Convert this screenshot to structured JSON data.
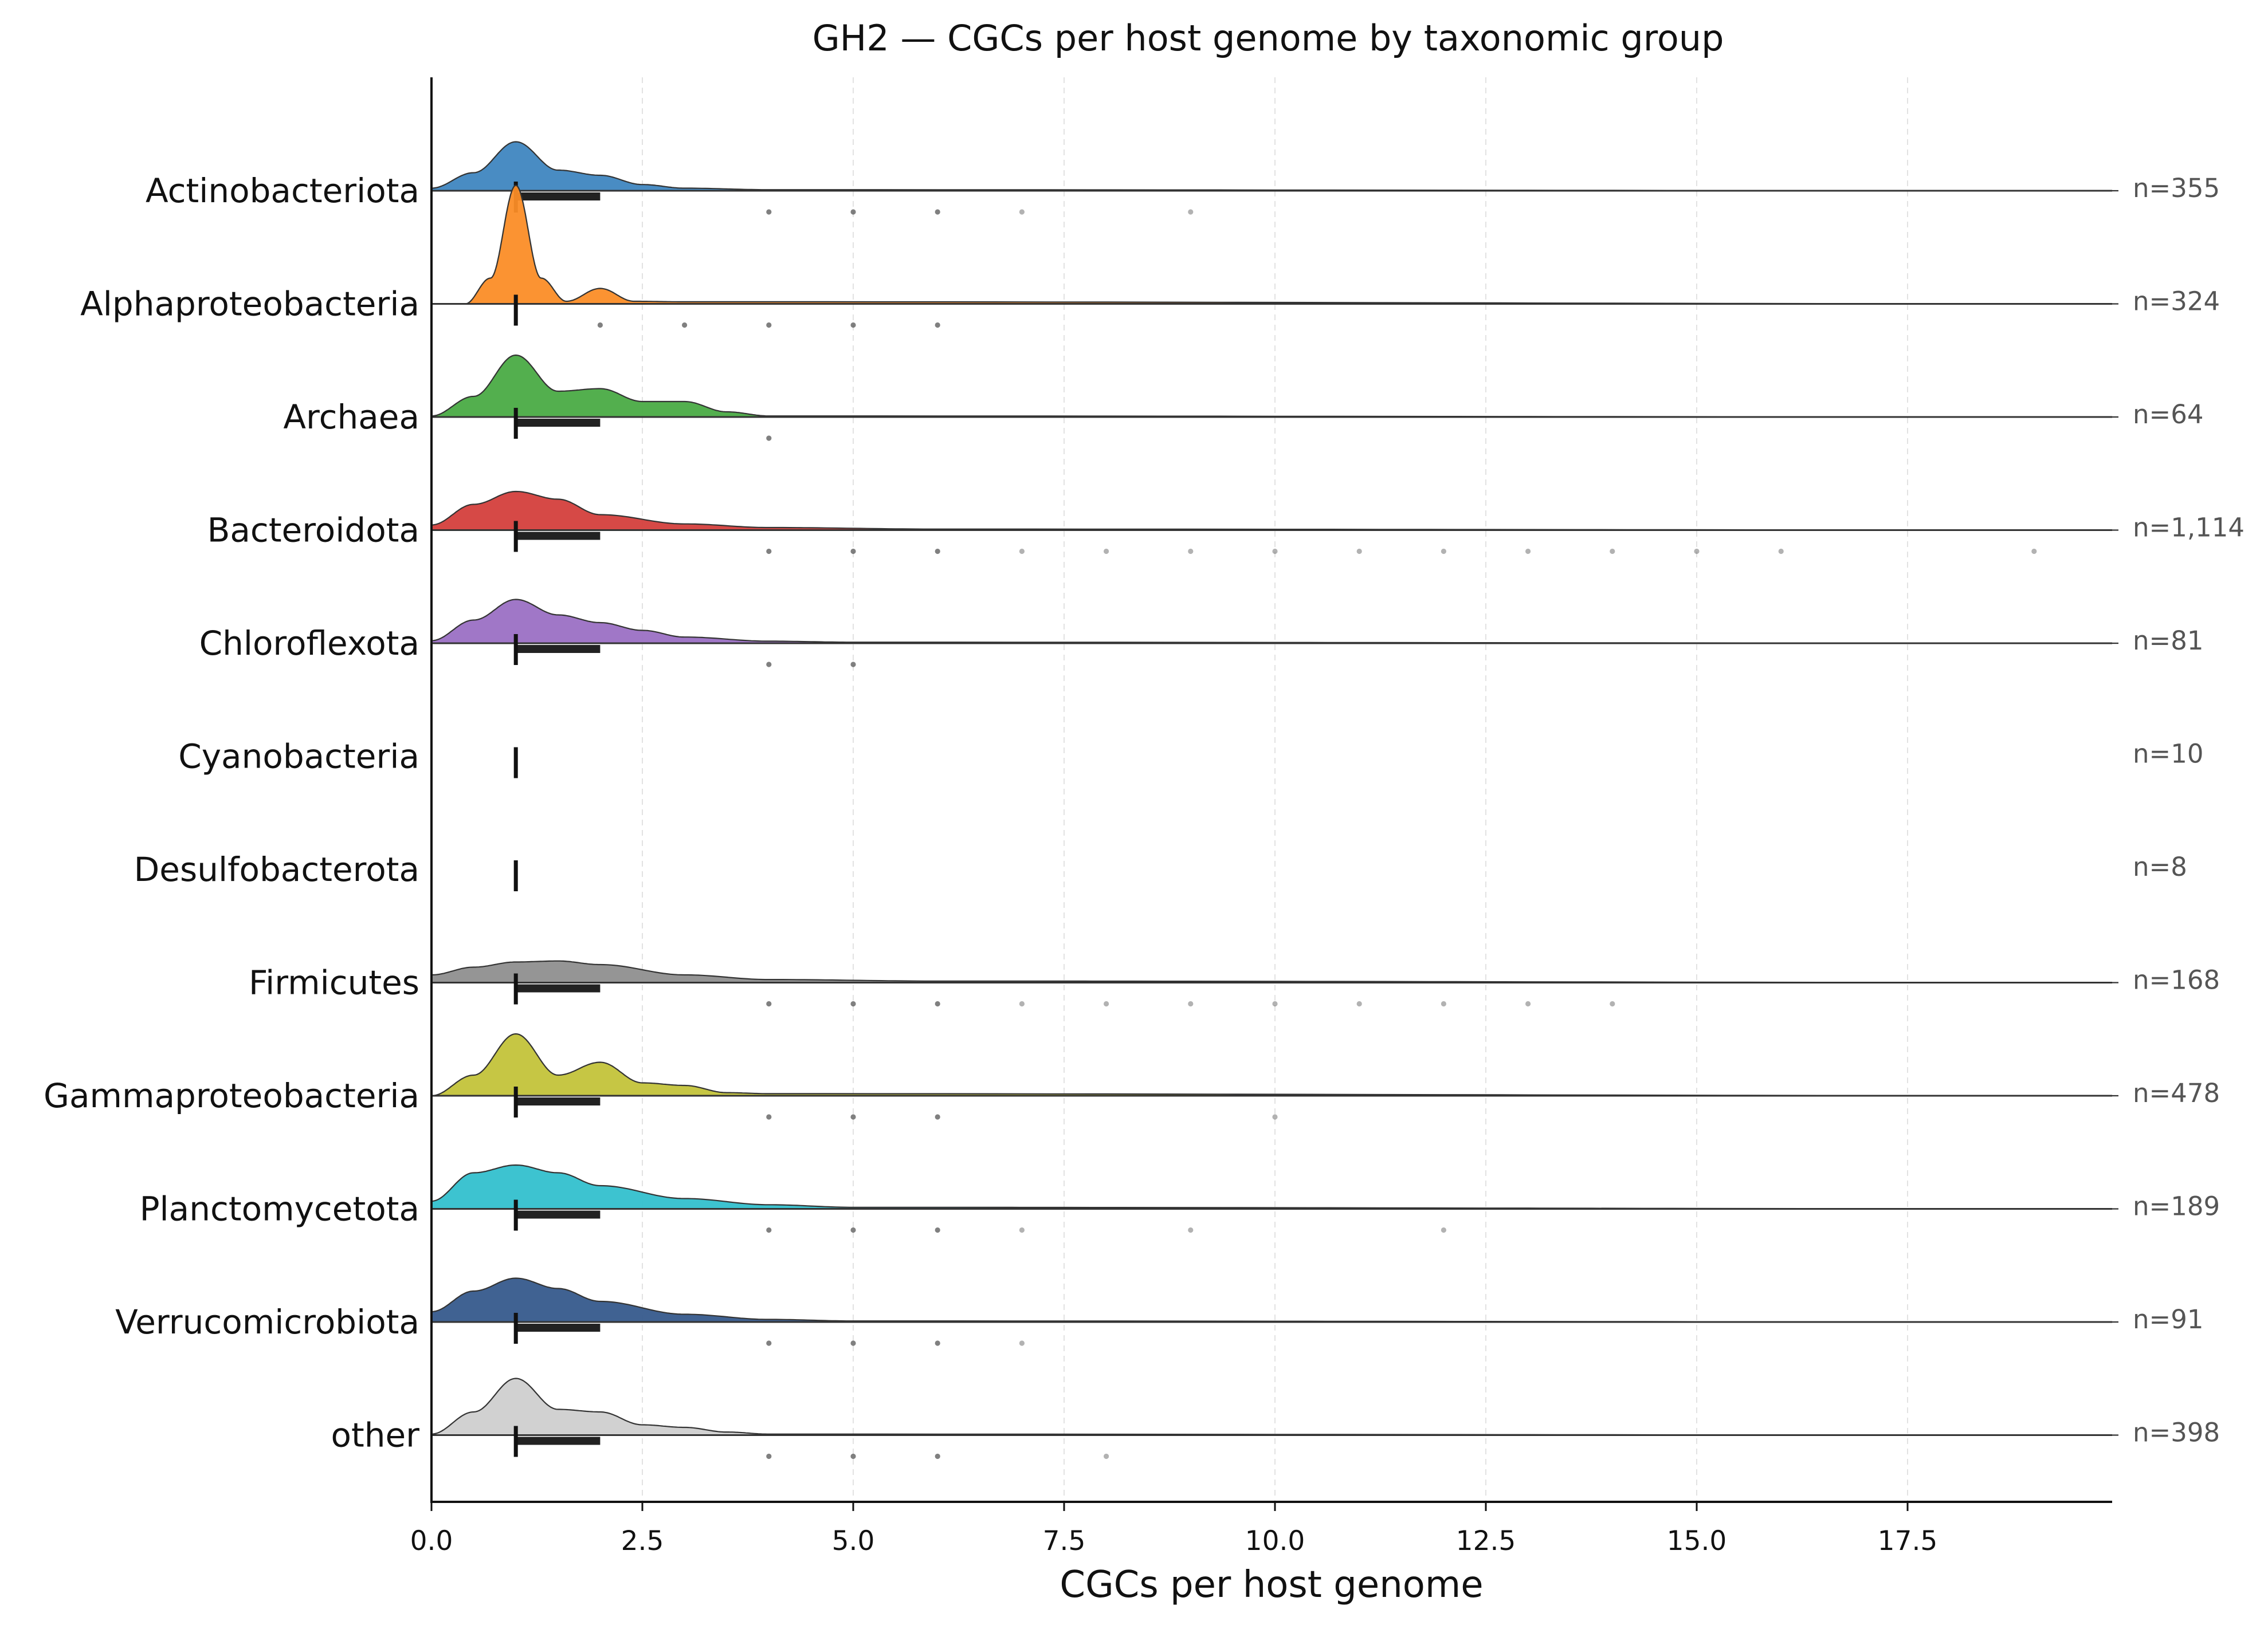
{
  "chart_data": {
    "type": "ridgeline",
    "title": "GH2 — CGCs per host genome by taxonomic group",
    "xlabel": "CGCs per host genome",
    "ylabel": "",
    "xlim": [
      0,
      20
    ],
    "xticks": [
      "0.0",
      "2.5",
      "5.0",
      "7.5",
      "10.0",
      "12.5",
      "15.0",
      "17.5"
    ],
    "x_grid": true,
    "groups": [
      {
        "name": "Actinobacteriota",
        "n_label": "n=355",
        "color": "#3f86c0",
        "median": 1,
        "box": [
          1,
          2
        ],
        "outliers": [
          4,
          5,
          6,
          7,
          9
        ],
        "density": [
          [
            0,
            0.05
          ],
          [
            0.5,
            0.35
          ],
          [
            1,
            0.95
          ],
          [
            1.5,
            0.4
          ],
          [
            2,
            0.3
          ],
          [
            2.5,
            0.12
          ],
          [
            3,
            0.05
          ],
          [
            4,
            0.02
          ],
          [
            20,
            0
          ]
        ]
      },
      {
        "name": "Alphaproteobacteria",
        "n_label": "n=324",
        "color": "#fb8d27",
        "median": 1,
        "box": [
          1,
          1
        ],
        "outliers": [
          2,
          3,
          4,
          5,
          6
        ],
        "density": [
          [
            0.4,
            0
          ],
          [
            0.7,
            0.5
          ],
          [
            1,
            2.3
          ],
          [
            1.3,
            0.5
          ],
          [
            1.6,
            0.05
          ],
          [
            2,
            0.3
          ],
          [
            2.4,
            0.05
          ],
          [
            3,
            0.04
          ],
          [
            4,
            0.04
          ],
          [
            20,
            0
          ]
        ]
      },
      {
        "name": "Archaea",
        "n_label": "n=64",
        "color": "#4aab44",
        "median": 1,
        "box": [
          1,
          2
        ],
        "outliers": [
          4
        ],
        "density": [
          [
            0,
            0.02
          ],
          [
            0.5,
            0.4
          ],
          [
            1,
            1.2
          ],
          [
            1.5,
            0.5
          ],
          [
            2,
            0.55
          ],
          [
            2.5,
            0.3
          ],
          [
            3,
            0.3
          ],
          [
            3.5,
            0.1
          ],
          [
            4,
            0.02
          ],
          [
            20,
            0
          ]
        ]
      },
      {
        "name": "Bacteroidota",
        "n_label": "n=1,114",
        "color": "#d43f3c",
        "median": 1,
        "box": [
          1,
          2
        ],
        "outliers": [
          4,
          5,
          6,
          7,
          8,
          9,
          10,
          11,
          12,
          13,
          14,
          15,
          16,
          19
        ],
        "density": [
          [
            0,
            0.1
          ],
          [
            0.5,
            0.5
          ],
          [
            1,
            0.75
          ],
          [
            1.5,
            0.6
          ],
          [
            2,
            0.3
          ],
          [
            3,
            0.12
          ],
          [
            4,
            0.05
          ],
          [
            6,
            0.02
          ],
          [
            20,
            0
          ]
        ]
      },
      {
        "name": "Chloroflexota",
        "n_label": "n=81",
        "color": "#9b70c4",
        "median": 1,
        "box": [
          1,
          2
        ],
        "outliers": [
          4,
          5
        ],
        "density": [
          [
            0,
            0.05
          ],
          [
            0.5,
            0.45
          ],
          [
            1,
            0.85
          ],
          [
            1.5,
            0.55
          ],
          [
            2,
            0.4
          ],
          [
            2.5,
            0.25
          ],
          [
            3,
            0.12
          ],
          [
            4,
            0.04
          ],
          [
            5,
            0.02
          ],
          [
            20,
            0
          ]
        ]
      },
      {
        "name": "Cyanobacteria",
        "n_label": "n=10",
        "color": "#8c564b",
        "median": 1,
        "box": null,
        "outliers": [],
        "density": []
      },
      {
        "name": "Desulfobacterota",
        "n_label": "n=8",
        "color": "#e377c2",
        "median": 1,
        "box": null,
        "outliers": [],
        "density": []
      },
      {
        "name": "Firmicutes",
        "n_label": "n=168",
        "color": "#8f8f8f",
        "median": 1,
        "box": [
          1,
          2
        ],
        "outliers": [
          4,
          5,
          6,
          7,
          8,
          9,
          10,
          11,
          12,
          13,
          14
        ],
        "density": [
          [
            0,
            0.15
          ],
          [
            0.5,
            0.3
          ],
          [
            1,
            0.4
          ],
          [
            1.5,
            0.42
          ],
          [
            2,
            0.35
          ],
          [
            3,
            0.15
          ],
          [
            4,
            0.06
          ],
          [
            6,
            0.03
          ],
          [
            20,
            0
          ]
        ]
      },
      {
        "name": "Gammaproteobacteria",
        "n_label": "n=478",
        "color": "#c3c33a",
        "median": 1,
        "box": [
          1,
          2
        ],
        "outliers": [
          4,
          5,
          6,
          10
        ],
        "density": [
          [
            0,
            0
          ],
          [
            0.5,
            0.4
          ],
          [
            1,
            1.2
          ],
          [
            1.5,
            0.4
          ],
          [
            2,
            0.65
          ],
          [
            2.5,
            0.25
          ],
          [
            3,
            0.2
          ],
          [
            3.5,
            0.06
          ],
          [
            4,
            0.04
          ],
          [
            20,
            0
          ]
        ]
      },
      {
        "name": "Planctomycetota",
        "n_label": "n=189",
        "color": "#33c0ce",
        "median": 1,
        "box": [
          1,
          2
        ],
        "outliers": [
          4,
          5,
          6,
          7,
          9,
          12
        ],
        "density": [
          [
            0,
            0.15
          ],
          [
            0.5,
            0.7
          ],
          [
            1,
            0.85
          ],
          [
            1.5,
            0.7
          ],
          [
            2,
            0.45
          ],
          [
            3,
            0.2
          ],
          [
            4,
            0.08
          ],
          [
            5,
            0.03
          ],
          [
            20,
            0
          ]
        ]
      },
      {
        "name": "Verrucomicrobiota",
        "n_label": "n=91",
        "color": "#365a8c",
        "median": 1,
        "box": [
          1,
          2
        ],
        "outliers": [
          4,
          5,
          6,
          7
        ],
        "density": [
          [
            0,
            0.2
          ],
          [
            0.5,
            0.6
          ],
          [
            1,
            0.85
          ],
          [
            1.5,
            0.65
          ],
          [
            2,
            0.4
          ],
          [
            3,
            0.15
          ],
          [
            4,
            0.05
          ],
          [
            5,
            0.02
          ],
          [
            20,
            0
          ]
        ]
      },
      {
        "name": "other",
        "n_label": "n=398",
        "color": "#cfcfcf",
        "median": 1,
        "box": [
          1,
          2
        ],
        "outliers": [
          4,
          5,
          6,
          8
        ],
        "density": [
          [
            0,
            0.02
          ],
          [
            0.5,
            0.45
          ],
          [
            1,
            1.1
          ],
          [
            1.5,
            0.5
          ],
          [
            2,
            0.45
          ],
          [
            2.5,
            0.2
          ],
          [
            3,
            0.15
          ],
          [
            3.5,
            0.06
          ],
          [
            4,
            0.02
          ],
          [
            20,
            0
          ]
        ]
      }
    ]
  }
}
